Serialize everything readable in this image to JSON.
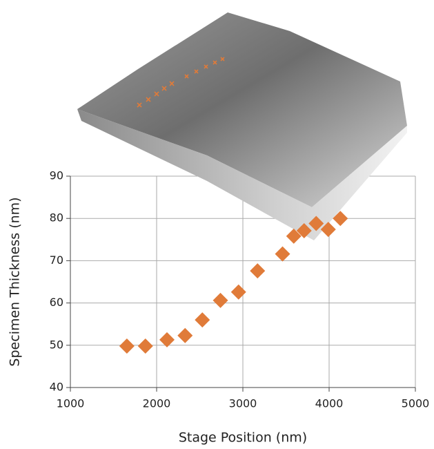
{
  "chart_data": {
    "type": "scatter",
    "x_label": "Stage Position (nm)",
    "y_label": "Specimen Thickness (nm)",
    "series": [
      {
        "color": "#e07b39",
        "x": [
          1655,
          1870,
          2120,
          2330,
          2530,
          2740,
          2950,
          3170,
          3460,
          3590,
          3710,
          3850,
          3990,
          4130
        ],
        "values": [
          49.8,
          49.8,
          51.3,
          52.3,
          56,
          60.6,
          62.6,
          67.6,
          71.6,
          75.8,
          77.1,
          78.8,
          77.4,
          80
        ]
      }
    ],
    "xlim": [
      1000,
      5000
    ],
    "xticks": [
      1000,
      2000,
      3000,
      4000,
      5000
    ],
    "ylim": [
      40,
      90
    ],
    "yticks": [
      40,
      50,
      60,
      70,
      80,
      90
    ],
    "grid": true
  }
}
